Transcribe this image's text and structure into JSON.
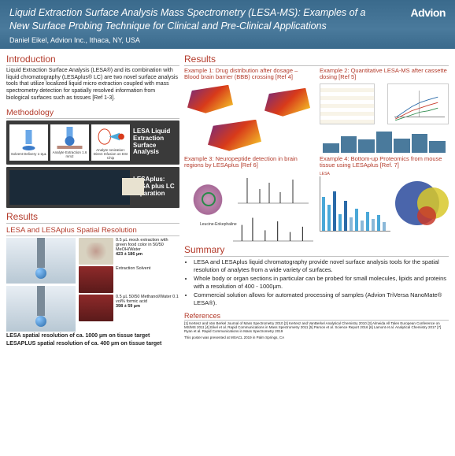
{
  "header": {
    "title": "Liquid Extraction Surface Analysis Mass Spectrometry (LESA-MS): Examples of a New Surface Probing Technique for Clinical and Pre-Clinical Applications",
    "author": "Daniel Eikel, Advion Inc., Ithaca, NY, USA",
    "brand": "Advion"
  },
  "colors": {
    "header_bg": "#4a7a9c",
    "accent": "#b33a2a",
    "meth_bg": "#3a3a3a"
  },
  "intro": {
    "heading": "Introduction",
    "text": "Liquid Extraction Surface Analysis (LESA®) and its combination with liquid chromatography (LESAplus® LC) are two novel surface analysis tools that utilize localized liquid micro extraction coupled with mass spectrometry detection for spatially resolved information from biological surfaces such as tissues [Ref 1-3]."
  },
  "methodology": {
    "heading": "Methodology",
    "box1": {
      "label": "LESA Liquid Extraction Surface Analysis",
      "icons": [
        {
          "caption": "Solvent Delivery 1-2µL"
        },
        {
          "caption": "Analyte Extraction 1.6 mm2"
        },
        {
          "caption": "Analyte Ionization: Direct Infusion on ESI Chip"
        }
      ]
    },
    "box2": {
      "label": "LESAplus: LESA plus LC separation"
    }
  },
  "results_left": {
    "heading": "Results",
    "subheading": "LESA and LESAplus Spatial Resolution",
    "row1": {
      "text": "0.5 µL mock extraction with green food color in 50/50 MeOH/Water",
      "metric": "423 ± 186 µm"
    },
    "row2": {
      "text": "Extraction Solvent",
      "text2": "0.5 µL 50/50 Methanol/Water 0.1 vol% formic acid",
      "metric": "398 ± 59 µm"
    },
    "caption1": "LESA spatial resolution of ca. 1000 µm on tissue target",
    "caption2": "LESAPLUS spatial resolution of ca. 400 µm on tissue target"
  },
  "results_right": {
    "heading": "Results",
    "examples": [
      {
        "title": "Example 1: Drug distribution after dosage – Blood brain barrier (BBB) crossing [Ref 4]"
      },
      {
        "title": "Example 2: Quantitative LESA-MS after cassette dosing [Ref 5]"
      },
      {
        "title": "Example 3: Neuropeptide detection in brain regions by LESAplus [Ref 6]",
        "mol": "Leucine-Enkephaline"
      },
      {
        "title": "Example 4: Bottom-up Proteomics from mouse tissue using LESAplus [Ref. 7]",
        "lesa": "LESA"
      }
    ],
    "ex4_bars": {
      "values": [
        62,
        48,
        72,
        30,
        55,
        25,
        40,
        18,
        34,
        22,
        28,
        15
      ],
      "colors": [
        "#4aa8d8",
        "#4aa8d8",
        "#2a6aa8",
        "#4aa8d8",
        "#2a6aa8",
        "#8ab8d8",
        "#4aa8d8",
        "#8ab8d8",
        "#4aa8d8",
        "#8ab8d8",
        "#4aa8d8",
        "#8ab8d8"
      ]
    }
  },
  "summary": {
    "heading": "Summary",
    "bullets": [
      "LESA and LESAplus liquid chromatography provide novel surface analysis tools for the spatial resolution of analytes from a wide variety of surfaces.",
      "Whole body or organ sections in particular can be probed for small molecules, lipids and proteins with a resolution of 400 - 1000µm.",
      "Commercial solution allows for automated processing of samples (Advion TriVersa NanoMate® LESA®)."
    ]
  },
  "references": {
    "heading": "References",
    "text": "[1] Kertesz and Van Berkel Journal of Mass Spectrometry 2010   [2] Kertesz and VanBerkel Analytical Chemistry 2010   [3] Almeida All Talen European Conference on MS/MS 2011   [4] Eikel et al. Rapid Communications in Mass Spectrometry 2011   [5] Parson et al. Science Report 2016   [6] Lamont et al. Analytical Chemistry 2017   [7] Ryan et al. Rapid Communications in Mass Spectrometry 2019",
    "presented": "This poster was presented at MSACL 2019 in Palm Springs, CA"
  }
}
